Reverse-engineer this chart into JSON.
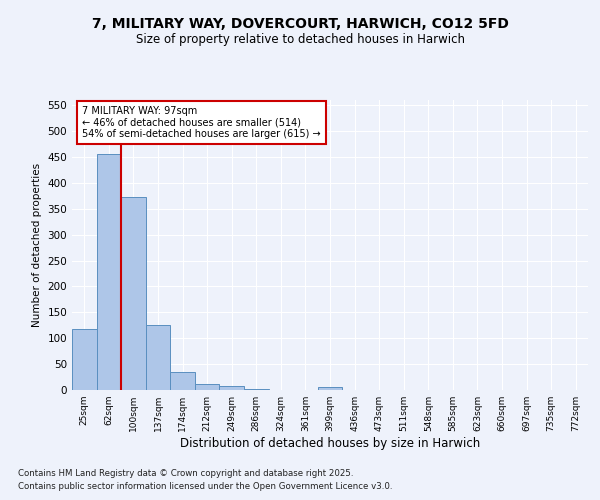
{
  "title1": "7, MILITARY WAY, DOVERCOURT, HARWICH, CO12 5FD",
  "title2": "Size of property relative to detached houses in Harwich",
  "xlabel": "Distribution of detached houses by size in Harwich",
  "ylabel": "Number of detached properties",
  "categories": [
    "25sqm",
    "62sqm",
    "100sqm",
    "137sqm",
    "174sqm",
    "212sqm",
    "249sqm",
    "286sqm",
    "324sqm",
    "361sqm",
    "399sqm",
    "436sqm",
    "473sqm",
    "511sqm",
    "548sqm",
    "585sqm",
    "623sqm",
    "660sqm",
    "697sqm",
    "735sqm",
    "772sqm"
  ],
  "values": [
    118,
    455,
    372,
    126,
    35,
    12,
    7,
    1,
    0,
    0,
    6,
    0,
    0,
    0,
    0,
    0,
    0,
    0,
    0,
    0,
    0
  ],
  "bar_color": "#aec6e8",
  "bar_edge_color": "#5a8fc0",
  "vline_color": "#cc0000",
  "annotation_title": "7 MILITARY WAY: 97sqm",
  "annotation_line2": "← 46% of detached houses are smaller (514)",
  "annotation_line3": "54% of semi-detached houses are larger (615) →",
  "annotation_box_color": "#cc0000",
  "ylim": [
    0,
    560
  ],
  "yticks": [
    0,
    50,
    100,
    150,
    200,
    250,
    300,
    350,
    400,
    450,
    500,
    550
  ],
  "background_color": "#eef2fb",
  "grid_color": "#ffffff",
  "footer1": "Contains HM Land Registry data © Crown copyright and database right 2025.",
  "footer2": "Contains public sector information licensed under the Open Government Licence v3.0."
}
